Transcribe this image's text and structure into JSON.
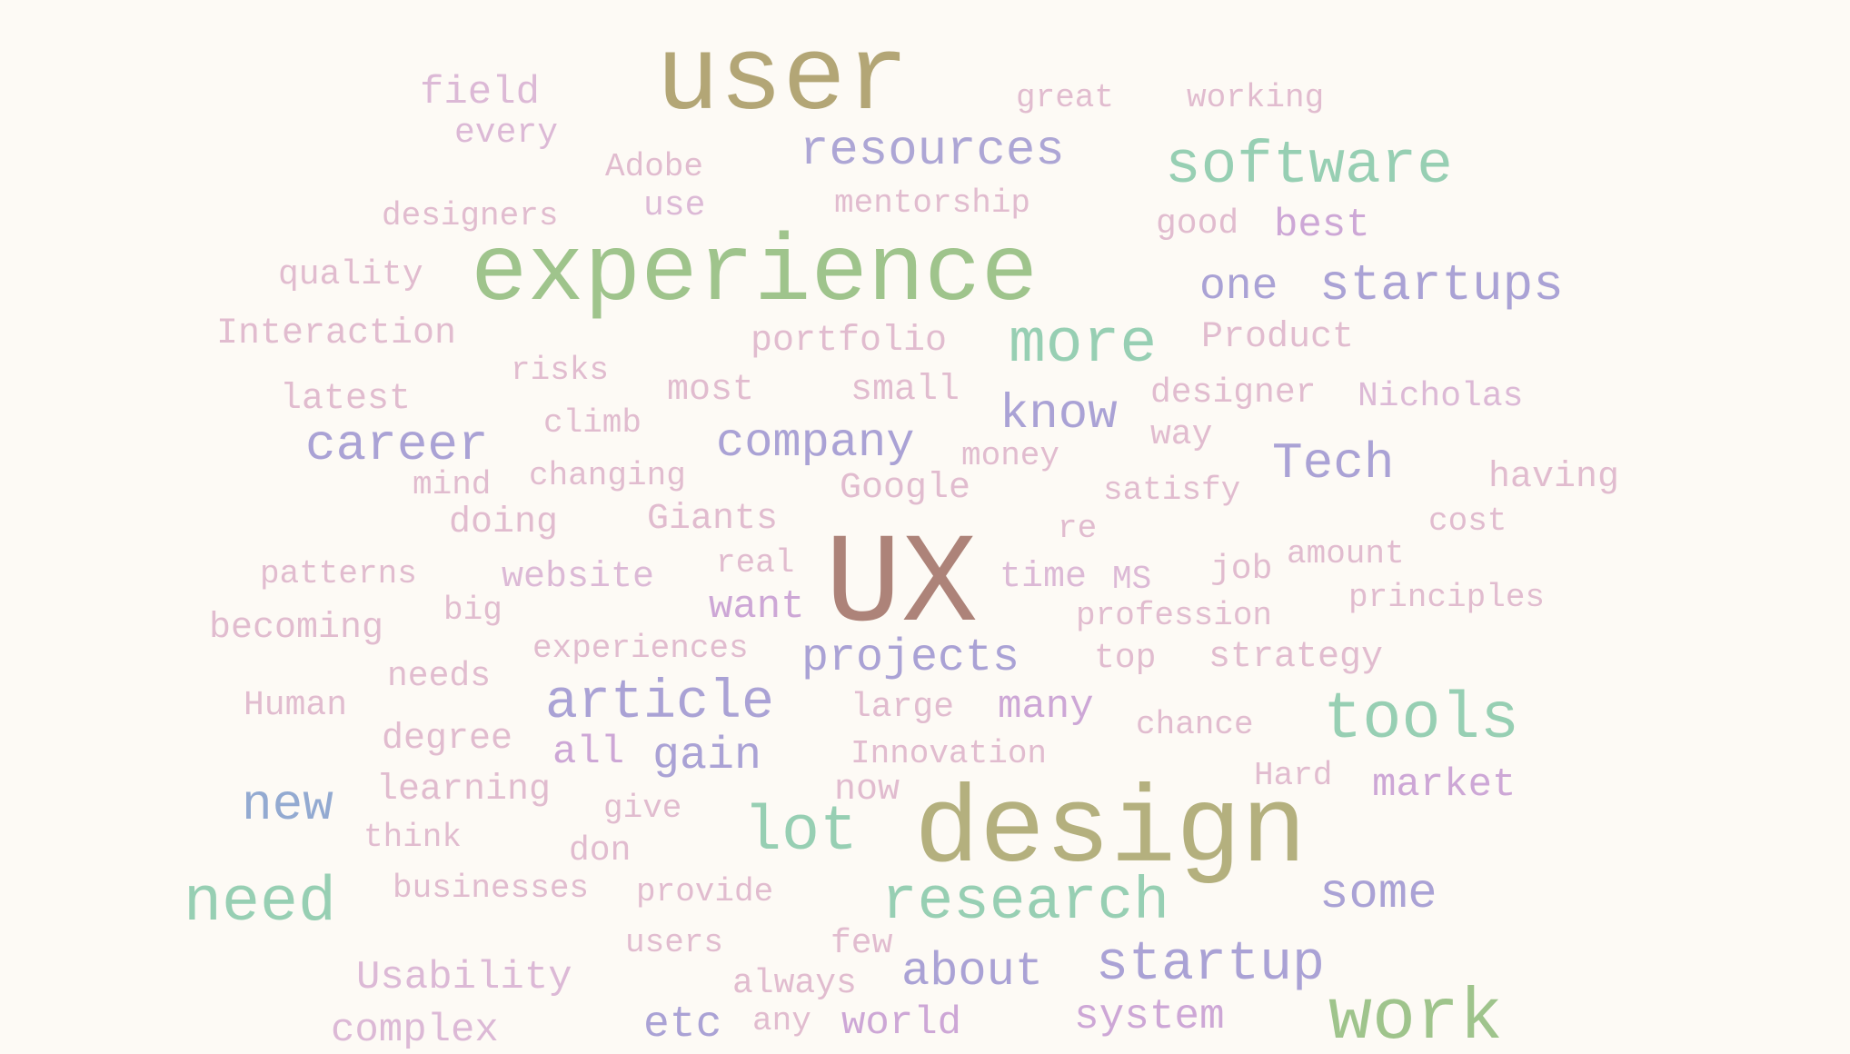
{
  "colors": {
    "background": "#fdfaf5",
    "olive": "#b3a676",
    "green": "#9fc48c",
    "teal": "#97cfb3",
    "lavender": "#ada6d5",
    "blue": "#93aad1",
    "brown": "#ad8379",
    "khaki": "#b4b07e",
    "pink": "#dcb9d6",
    "rose": "#e1bccf",
    "plum": "#cda7d6",
    "periwinkle": "#aaa2d5"
  },
  "words": [
    {
      "text": "user",
      "color": "#b3a676"
    },
    {
      "text": "field",
      "color": "#dcb9d6"
    },
    {
      "text": "great",
      "color": "#e1bccf"
    },
    {
      "text": "working",
      "color": "#e1bccf"
    },
    {
      "text": "every",
      "color": "#dcb9d6"
    },
    {
      "text": "resources",
      "color": "#ada6d5"
    },
    {
      "text": "software",
      "color": "#97cfb3"
    },
    {
      "text": "Adobe",
      "color": "#e1bccf"
    },
    {
      "text": "use",
      "color": "#dcb9d6"
    },
    {
      "text": "designers",
      "color": "#e1bccf"
    },
    {
      "text": "mentorship",
      "color": "#e1bccf"
    },
    {
      "text": "good",
      "color": "#e1bccf"
    },
    {
      "text": "best",
      "color": "#cda7d6"
    },
    {
      "text": "quality",
      "color": "#e1bccf"
    },
    {
      "text": "experience",
      "color": "#9fc48c"
    },
    {
      "text": "one",
      "color": "#aaa2d5"
    },
    {
      "text": "startups",
      "color": "#aaa2d5"
    },
    {
      "text": "Interaction",
      "color": "#e1bccf"
    },
    {
      "text": "portfolio",
      "color": "#e1bccf"
    },
    {
      "text": "more",
      "color": "#97cfb3"
    },
    {
      "text": "Product",
      "color": "#e1bccf"
    },
    {
      "text": "risks",
      "color": "#e1bccf"
    },
    {
      "text": "latest",
      "color": "#e1bccf"
    },
    {
      "text": "most",
      "color": "#e1bccf"
    },
    {
      "text": "small",
      "color": "#e1bccf"
    },
    {
      "text": "designer",
      "color": "#e1bccf"
    },
    {
      "text": "Nicholas",
      "color": "#dcb9d6"
    },
    {
      "text": "climb",
      "color": "#e1bccf"
    },
    {
      "text": "know",
      "color": "#aaa2d5"
    },
    {
      "text": "career",
      "color": "#aaa2d5"
    },
    {
      "text": "company",
      "color": "#aaa2d5"
    },
    {
      "text": "way",
      "color": "#e1bccf"
    },
    {
      "text": "money",
      "color": "#e1bccf"
    },
    {
      "text": "Tech",
      "color": "#aaa2d5"
    },
    {
      "text": "mind",
      "color": "#e1bccf"
    },
    {
      "text": "changing",
      "color": "#e1bccf"
    },
    {
      "text": "Google",
      "color": "#e1bccf"
    },
    {
      "text": "satisfy",
      "color": "#e1bccf"
    },
    {
      "text": "having",
      "color": "#e1bccf"
    },
    {
      "text": "doing",
      "color": "#e1bccf"
    },
    {
      "text": "Giants",
      "color": "#e1bccf"
    },
    {
      "text": "re",
      "color": "#e1bccf"
    },
    {
      "text": "cost",
      "color": "#e1bccf"
    },
    {
      "text": "UX",
      "color": "#ad8379"
    },
    {
      "text": "real",
      "color": "#e1bccf"
    },
    {
      "text": "amount",
      "color": "#e1bccf"
    },
    {
      "text": "patterns",
      "color": "#e1bccf"
    },
    {
      "text": "website",
      "color": "#dcb9d6"
    },
    {
      "text": "time",
      "color": "#dcb9d6"
    },
    {
      "text": "MS",
      "color": "#dcb9d6"
    },
    {
      "text": "job",
      "color": "#e1bccf"
    },
    {
      "text": "principles",
      "color": "#e1bccf"
    },
    {
      "text": "big",
      "color": "#e1bccf"
    },
    {
      "text": "want",
      "color": "#cda7d6"
    },
    {
      "text": "profession",
      "color": "#e1bccf"
    },
    {
      "text": "becoming",
      "color": "#e1bccf"
    },
    {
      "text": "experiences",
      "color": "#e1bccf"
    },
    {
      "text": "projects",
      "color": "#aaa2d5"
    },
    {
      "text": "top",
      "color": "#e1bccf"
    },
    {
      "text": "strategy",
      "color": "#e1bccf"
    },
    {
      "text": "needs",
      "color": "#e1bccf"
    },
    {
      "text": "Human",
      "color": "#e1bccf"
    },
    {
      "text": "article",
      "color": "#aaa2d5"
    },
    {
      "text": "large",
      "color": "#e1bccf"
    },
    {
      "text": "many",
      "color": "#cda7d6"
    },
    {
      "text": "chance",
      "color": "#e1bccf"
    },
    {
      "text": "tools",
      "color": "#97cfb3"
    },
    {
      "text": "degree",
      "color": "#e1bccf"
    },
    {
      "text": "all",
      "color": "#cda7d6"
    },
    {
      "text": "gain",
      "color": "#aaa2d5"
    },
    {
      "text": "Innovation",
      "color": "#e1bccf"
    },
    {
      "text": "Hard",
      "color": "#e1bccf"
    },
    {
      "text": "market",
      "color": "#cda7d6"
    },
    {
      "text": "new",
      "color": "#93aad1"
    },
    {
      "text": "learning",
      "color": "#e1bccf"
    },
    {
      "text": "now",
      "color": "#e1bccf"
    },
    {
      "text": "give",
      "color": "#e1bccf"
    },
    {
      "text": "lot",
      "color": "#97cfb3"
    },
    {
      "text": "design",
      "color": "#b4b07e"
    },
    {
      "text": "think",
      "color": "#e1bccf"
    },
    {
      "text": "don",
      "color": "#e1bccf"
    },
    {
      "text": "need",
      "color": "#97cfb3"
    },
    {
      "text": "businesses",
      "color": "#e1bccf"
    },
    {
      "text": "provide",
      "color": "#e1bccf"
    },
    {
      "text": "research",
      "color": "#97cfb3"
    },
    {
      "text": "some",
      "color": "#aaa2d5"
    },
    {
      "text": "users",
      "color": "#e1bccf"
    },
    {
      "text": "few",
      "color": "#e1bccf"
    },
    {
      "text": "Usability",
      "color": "#dcb9d6"
    },
    {
      "text": "always",
      "color": "#e1bccf"
    },
    {
      "text": "about",
      "color": "#aaa2d5"
    },
    {
      "text": "startup",
      "color": "#aaa2d5"
    },
    {
      "text": "complex",
      "color": "#dcb9d6"
    },
    {
      "text": "etc",
      "color": "#aaa2d5"
    },
    {
      "text": "any",
      "color": "#e1bccf"
    },
    {
      "text": "world",
      "color": "#cda7d6"
    },
    {
      "text": "system",
      "color": "#cda7d6"
    },
    {
      "text": "work",
      "color": "#9fc48c"
    }
  ]
}
